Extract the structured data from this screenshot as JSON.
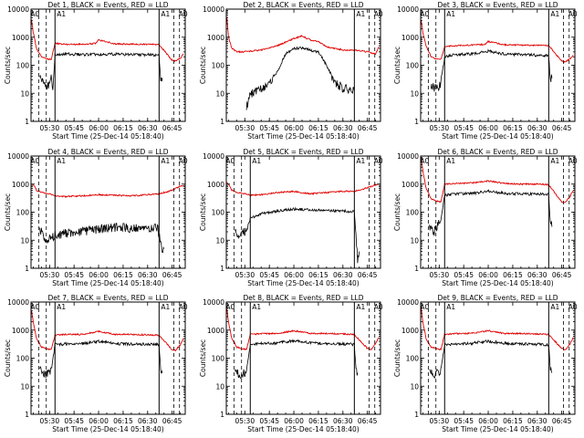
{
  "figure": {
    "columns": 3,
    "rows": 3
  },
  "shared": {
    "xlabel": "Start Time (25-Dec-14 05:18:40)",
    "ylabel": "Counts/sec",
    "x_ticks": [
      "05:30",
      "05:45",
      "06:00",
      "06:15",
      "06:30",
      "06:45"
    ],
    "y_ticks": [
      "1",
      "10",
      "100",
      "1000",
      "10000"
    ],
    "attenuator_labels": [
      "A0",
      "A1",
      "A1",
      "A0"
    ],
    "series_colors": {
      "Events": "#000000",
      "LLD": "#e00000"
    }
  },
  "chart_data": [
    {
      "type": "line",
      "title": "Det 1, BLACK = Events, RED = LLD",
      "xlabel": "Start Time (25-Dec-14 05:18:40)",
      "ylabel": "Counts/sec",
      "y_scale": "log",
      "ylim": [
        1,
        10000
      ],
      "xlim": [
        "05:18:40",
        "06:53:00"
      ],
      "solid_markers": [
        "05:33:20",
        "06:37:00"
      ],
      "dashed_markers": [
        "05:23:20",
        "05:28:00",
        "06:46:00",
        "06:49:30"
      ],
      "series": [
        {
          "name": "Events",
          "x": [
            "05:24:00",
            "05:27:00",
            "05:30:00",
            "05:31:00",
            "05:32:00",
            "05:33:20",
            "05:40:00",
            "05:50:00",
            "06:00:00",
            "06:10:00",
            "06:20:00",
            "06:30:00",
            "06:37:00",
            "06:38:00",
            "06:39:00"
          ],
          "y": [
            40,
            20,
            18,
            35,
            15,
            240,
            250,
            240,
            245,
            250,
            240,
            235,
            230,
            30,
            35
          ]
        },
        {
          "name": "LLD",
          "x": [
            "05:19:00",
            "05:20:00",
            "05:22:00",
            "05:25:00",
            "05:28:00",
            "05:31:00",
            "05:33:20",
            "05:40:00",
            "05:50:00",
            "05:58:00",
            "06:00:00",
            "06:10:00",
            "06:20:00",
            "06:30:00",
            "06:37:00",
            "06:45:00",
            "06:47:00",
            "06:50:00",
            "06:52:00"
          ],
          "y": [
            4000,
            1500,
            400,
            200,
            170,
            160,
            600,
            550,
            560,
            600,
            800,
            580,
            560,
            560,
            550,
            150,
            140,
            180,
            250
          ]
        }
      ]
    },
    {
      "type": "line",
      "title": "Det 2, BLACK = Events, RED = LLD",
      "xlabel": "Start Time (25-Dec-14 05:18:40)",
      "ylabel": "Counts/sec",
      "y_scale": "log",
      "ylim": [
        1,
        10000
      ],
      "xlim": [
        "05:18:40",
        "06:53:00"
      ],
      "solid_markers": [
        "06:37:00"
      ],
      "dashed_markers": [
        "06:46:00",
        "06:49:30"
      ],
      "series": [
        {
          "name": "Events",
          "x": [
            "05:31:00",
            "05:33:00",
            "05:36:00",
            "05:40:00",
            "05:45:00",
            "05:50:00",
            "05:55:00",
            "06:00:00",
            "06:05:00",
            "06:10:00",
            "06:15:00",
            "06:20:00",
            "06:25:00",
            "06:30:00",
            "06:37:00"
          ],
          "y": [
            3,
            8,
            12,
            15,
            20,
            60,
            250,
            400,
            420,
            350,
            300,
            100,
            25,
            15,
            12
          ]
        },
        {
          "name": "LLD",
          "x": [
            "05:19:00",
            "05:20:00",
            "05:22:00",
            "05:25:00",
            "05:30:00",
            "05:40:00",
            "05:50:00",
            "06:00:00",
            "06:05:00",
            "06:10:00",
            "06:15:00",
            "06:20:00",
            "06:30:00",
            "06:37:00",
            "06:45:00",
            "06:50:00",
            "06:52:00"
          ],
          "y": [
            5000,
            1000,
            400,
            300,
            300,
            350,
            500,
            900,
            1100,
            800,
            700,
            450,
            350,
            350,
            300,
            250,
            450
          ]
        }
      ]
    },
    {
      "type": "line",
      "title": "Det 3, BLACK = Events, RED = LLD",
      "xlabel": "Start Time (25-Dec-14 05:18:40)",
      "ylabel": "Counts/sec",
      "y_scale": "log",
      "ylim": [
        1,
        10000
      ],
      "xlim": [
        "05:18:40",
        "06:53:00"
      ],
      "solid_markers": [
        "05:33:20",
        "06:37:00"
      ],
      "dashed_markers": [
        "05:23:20",
        "05:28:00",
        "06:46:00",
        "06:49:30"
      ],
      "series": [
        {
          "name": "Events",
          "x": [
            "05:25:00",
            "05:27:00",
            "05:30:00",
            "05:31:00",
            "05:33:20",
            "05:40:00",
            "05:50:00",
            "06:00:00",
            "06:10:00",
            "06:20:00",
            "06:30:00",
            "06:37:00",
            "06:38:00",
            "06:39:00"
          ],
          "y": [
            20,
            15,
            18,
            25,
            200,
            240,
            250,
            320,
            250,
            240,
            230,
            220,
            30,
            35
          ]
        },
        {
          "name": "LLD",
          "x": [
            "05:19:00",
            "05:20:00",
            "05:22:00",
            "05:25:00",
            "05:28:00",
            "05:31:00",
            "05:33:20",
            "05:40:00",
            "05:50:00",
            "05:58:00",
            "06:00:00",
            "06:10:00",
            "06:20:00",
            "06:30:00",
            "06:37:00",
            "06:45:00",
            "06:47:00",
            "06:50:00",
            "06:52:00"
          ],
          "y": [
            4000,
            1500,
            500,
            200,
            170,
            160,
            450,
            500,
            520,
            560,
            700,
            540,
            520,
            510,
            500,
            140,
            130,
            170,
            230
          ]
        }
      ]
    },
    {
      "type": "line",
      "title": "Det 4, BLACK = Events, RED = LLD",
      "xlabel": "Start Time (25-Dec-14 05:18:40)",
      "ylabel": "Counts/sec",
      "y_scale": "log",
      "ylim": [
        1,
        10000
      ],
      "xlim": [
        "05:18:40",
        "06:53:00"
      ],
      "solid_markers": [
        "05:33:20",
        "06:37:00"
      ],
      "dashed_markers": [
        "05:23:20",
        "05:28:00",
        "06:46:00",
        "06:49:30"
      ],
      "series": [
        {
          "name": "Events",
          "x": [
            "05:24:00",
            "05:26:00",
            "05:28:00",
            "05:31:00",
            "05:33:20",
            "05:40:00",
            "05:50:00",
            "06:00:00",
            "06:10:00",
            "06:20:00",
            "06:30:00",
            "06:36:00",
            "06:38:00",
            "06:39:00",
            "06:40:00"
          ],
          "y": [
            25,
            15,
            10,
            12,
            15,
            18,
            20,
            25,
            28,
            27,
            28,
            30,
            8,
            3,
            5
          ]
        },
        {
          "name": "LLD",
          "x": [
            "05:19:00",
            "05:20:00",
            "05:22:00",
            "05:25:00",
            "05:30:00",
            "05:33:20",
            "05:40:00",
            "05:50:00",
            "06:00:00",
            "06:10:00",
            "06:20:00",
            "06:30:00",
            "06:37:00",
            "06:45:00",
            "06:47:00",
            "06:50:00",
            "06:52:00"
          ],
          "y": [
            1000,
            1000,
            600,
            500,
            450,
            380,
            360,
            380,
            420,
            400,
            380,
            420,
            450,
            600,
            700,
            850,
            900
          ]
        }
      ]
    },
    {
      "type": "line",
      "title": "Det 5, BLACK = Events, RED = LLD",
      "xlabel": "Start Time (25-Dec-14 05:18:40)",
      "ylabel": "Counts/sec",
      "y_scale": "log",
      "ylim": [
        1,
        10000
      ],
      "xlim": [
        "05:18:40",
        "06:53:00"
      ],
      "solid_markers": [
        "05:33:20",
        "06:37:00"
      ],
      "dashed_markers": [
        "05:23:20",
        "05:28:00",
        "06:46:00",
        "06:49:30"
      ],
      "series": [
        {
          "name": "Events",
          "x": [
            "05:24:00",
            "05:27:00",
            "05:30:00",
            "05:33:20",
            "05:40:00",
            "05:50:00",
            "06:00:00",
            "06:10:00",
            "06:20:00",
            "06:30:00",
            "06:37:00",
            "06:38:00",
            "06:39:00",
            "06:40:00"
          ],
          "y": [
            20,
            15,
            20,
            60,
            90,
            110,
            130,
            120,
            115,
            110,
            105,
            15,
            2,
            4
          ]
        },
        {
          "name": "LLD",
          "x": [
            "05:19:00",
            "05:20:00",
            "05:22:00",
            "05:25:00",
            "05:30:00",
            "05:33:20",
            "05:40:00",
            "05:50:00",
            "06:00:00",
            "06:10:00",
            "06:20:00",
            "06:30:00",
            "06:37:00",
            "06:45:00",
            "06:47:00",
            "06:50:00",
            "06:52:00"
          ],
          "y": [
            1100,
            1000,
            600,
            500,
            450,
            400,
            420,
            500,
            550,
            450,
            500,
            550,
            550,
            750,
            800,
            950,
            1000
          ]
        }
      ]
    },
    {
      "type": "line",
      "title": "Det 6, BLACK = Events, RED = LLD",
      "xlabel": "Start Time (25-Dec-14 05:18:40)",
      "ylabel": "Counts/sec",
      "y_scale": "log",
      "ylim": [
        1,
        10000
      ],
      "xlim": [
        "05:18:40",
        "06:53:00"
      ],
      "solid_markers": [
        "05:33:20",
        "06:37:00"
      ],
      "dashed_markers": [
        "05:23:20",
        "05:28:00",
        "06:46:00",
        "06:49:30"
      ],
      "series": [
        {
          "name": "Events",
          "x": [
            "05:24:00",
            "05:27:00",
            "05:30:00",
            "05:31:00",
            "05:33:20",
            "05:40:00",
            "05:50:00",
            "06:00:00",
            "06:10:00",
            "06:20:00",
            "06:30:00",
            "06:37:00",
            "06:38:00",
            "06:39:00"
          ],
          "y": [
            30,
            20,
            40,
            50,
            400,
            450,
            460,
            550,
            470,
            450,
            440,
            430,
            40,
            30
          ]
        },
        {
          "name": "LLD",
          "x": [
            "05:19:00",
            "05:20:00",
            "05:22:00",
            "05:25:00",
            "05:28:00",
            "05:31:00",
            "05:33:20",
            "05:40:00",
            "05:50:00",
            "06:00:00",
            "06:10:00",
            "06:20:00",
            "06:30:00",
            "06:37:00",
            "06:45:00",
            "06:47:00",
            "06:50:00",
            "06:52:00"
          ],
          "y": [
            9000,
            3000,
            700,
            300,
            250,
            230,
            1000,
            1050,
            1100,
            1300,
            1050,
            1000,
            1000,
            950,
            230,
            220,
            350,
            600
          ]
        }
      ]
    },
    {
      "type": "line",
      "title": "Det 7, BLACK = Events, RED = LLD",
      "xlabel": "Start Time (25-Dec-14 05:18:40)",
      "ylabel": "Counts/sec",
      "y_scale": "log",
      "ylim": [
        1,
        10000
      ],
      "xlim": [
        "05:18:40",
        "06:53:00"
      ],
      "solid_markers": [
        "05:33:20",
        "06:37:00"
      ],
      "dashed_markers": [
        "05:23:20",
        "05:28:00",
        "06:46:00",
        "06:49:30"
      ],
      "series": [
        {
          "name": "Events",
          "x": [
            "05:24:00",
            "05:27:00",
            "05:30:00",
            "05:31:00",
            "05:33:20",
            "05:40:00",
            "05:50:00",
            "06:00:00",
            "06:10:00",
            "06:20:00",
            "06:30:00",
            "06:37:00",
            "06:38:00",
            "06:39:00"
          ],
          "y": [
            40,
            25,
            30,
            35,
            300,
            320,
            330,
            400,
            330,
            320,
            310,
            300,
            40,
            30
          ]
        },
        {
          "name": "LLD",
          "x": [
            "05:19:00",
            "05:20:00",
            "05:22:00",
            "05:25:00",
            "05:28:00",
            "05:31:00",
            "05:33:20",
            "05:40:00",
            "05:50:00",
            "06:00:00",
            "06:10:00",
            "06:20:00",
            "06:30:00",
            "06:37:00",
            "06:45:00",
            "06:47:00",
            "06:50:00",
            "06:52:00"
          ],
          "y": [
            5000,
            2000,
            500,
            250,
            220,
            200,
            650,
            700,
            700,
            900,
            700,
            700,
            680,
            650,
            200,
            190,
            300,
            500
          ]
        }
      ]
    },
    {
      "type": "line",
      "title": "Det 8, BLACK = Events, RED = LLD",
      "xlabel": "Start Time (25-Dec-14 05:18:40)",
      "ylabel": "Counts/sec",
      "y_scale": "log",
      "ylim": [
        1,
        10000
      ],
      "xlim": [
        "05:18:40",
        "06:53:00"
      ],
      "solid_markers": [
        "05:33:20",
        "06:37:00"
      ],
      "dashed_markers": [
        "05:23:20",
        "05:28:00",
        "06:46:00",
        "06:49:30"
      ],
      "series": [
        {
          "name": "Events",
          "x": [
            "05:24:00",
            "05:27:00",
            "05:30:00",
            "05:31:00",
            "05:33:20",
            "05:40:00",
            "05:50:00",
            "06:00:00",
            "06:10:00",
            "06:20:00",
            "06:30:00",
            "06:37:00",
            "06:38:00",
            "06:39:00"
          ],
          "y": [
            40,
            25,
            30,
            35,
            300,
            330,
            350,
            420,
            350,
            330,
            320,
            310,
            40,
            30
          ]
        },
        {
          "name": "LLD",
          "x": [
            "05:19:00",
            "05:20:00",
            "05:22:00",
            "05:25:00",
            "05:28:00",
            "05:31:00",
            "05:33:20",
            "05:40:00",
            "05:50:00",
            "06:00:00",
            "06:10:00",
            "06:20:00",
            "06:30:00",
            "06:37:00",
            "06:45:00",
            "06:47:00",
            "06:50:00",
            "06:52:00"
          ],
          "y": [
            6000,
            2000,
            500,
            250,
            220,
            200,
            700,
            750,
            760,
            950,
            760,
            750,
            730,
            700,
            220,
            200,
            320,
            550
          ]
        }
      ]
    },
    {
      "type": "line",
      "title": "Det 9, BLACK = Events, RED = LLD",
      "xlabel": "Start Time (25-Dec-14 05:18:40)",
      "ylabel": "Counts/sec",
      "y_scale": "log",
      "ylim": [
        1,
        10000
      ],
      "xlim": [
        "05:18:40",
        "06:53:00"
      ],
      "solid_markers": [
        "05:33:20",
        "06:37:00"
      ],
      "dashed_markers": [
        "05:23:20",
        "05:28:00",
        "06:46:00",
        "06:49:30"
      ],
      "series": [
        {
          "name": "Events",
          "x": [
            "05:24:00",
            "05:27:00",
            "05:30:00",
            "05:31:00",
            "05:33:20",
            "05:40:00",
            "05:50:00",
            "06:00:00",
            "06:10:00",
            "06:20:00",
            "06:30:00",
            "06:37:00",
            "06:38:00",
            "06:39:00"
          ],
          "y": [
            40,
            25,
            30,
            35,
            300,
            320,
            340,
            400,
            340,
            320,
            310,
            300,
            40,
            30
          ]
        },
        {
          "name": "LLD",
          "x": [
            "05:19:00",
            "05:20:00",
            "05:22:00",
            "05:25:00",
            "05:28:00",
            "05:31:00",
            "05:33:20",
            "05:40:00",
            "05:50:00",
            "06:00:00",
            "06:10:00",
            "06:20:00",
            "06:30:00",
            "06:37:00",
            "06:45:00",
            "06:47:00",
            "06:50:00",
            "06:52:00"
          ],
          "y": [
            6000,
            2000,
            500,
            250,
            220,
            200,
            700,
            750,
            760,
            950,
            760,
            750,
            730,
            700,
            220,
            200,
            320,
            550
          ]
        }
      ]
    }
  ]
}
